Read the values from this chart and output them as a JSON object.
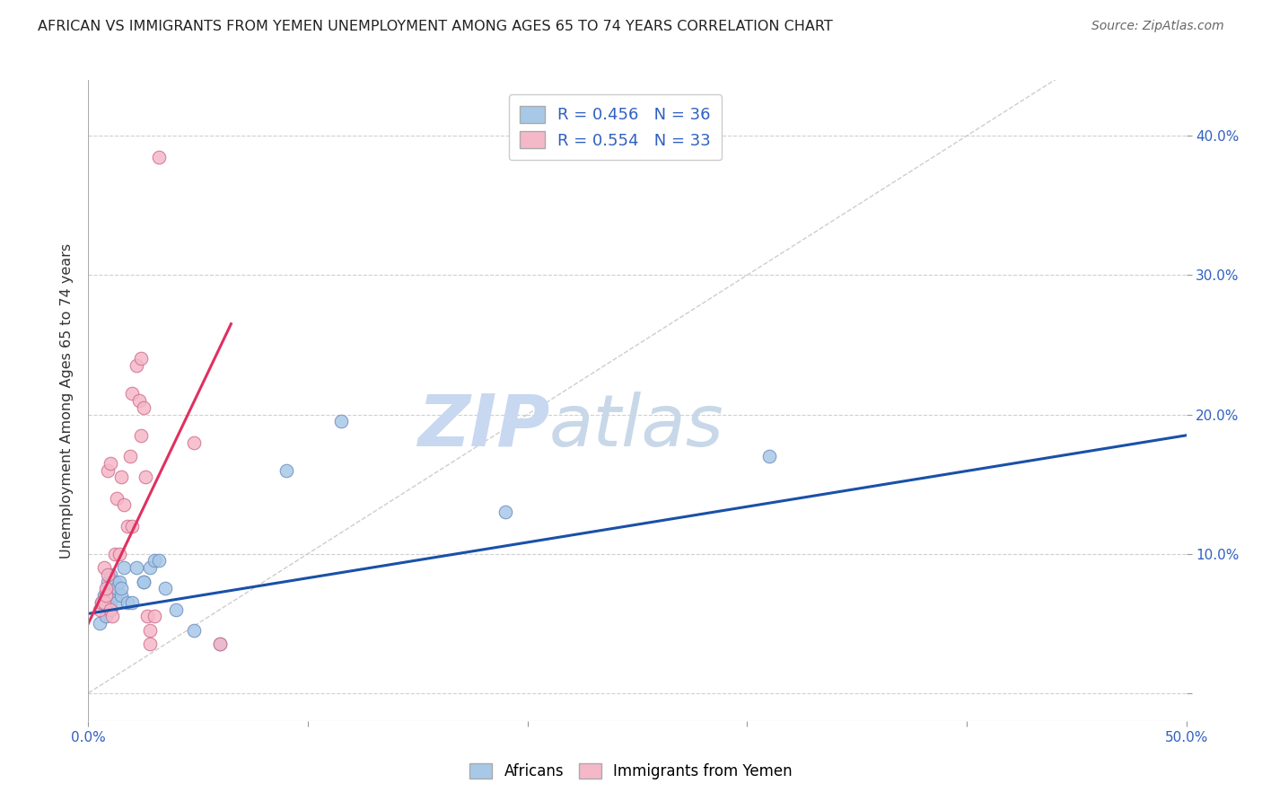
{
  "title": "AFRICAN VS IMMIGRANTS FROM YEMEN UNEMPLOYMENT AMONG AGES 65 TO 74 YEARS CORRELATION CHART",
  "source": "Source: ZipAtlas.com",
  "ylabel": "Unemployment Among Ages 65 to 74 years",
  "xlim": [
    0.0,
    0.5
  ],
  "ylim": [
    -0.02,
    0.44
  ],
  "xticks": [
    0.0,
    0.1,
    0.2,
    0.3,
    0.4,
    0.5
  ],
  "xticklabels": [
    "0.0%",
    "",
    "",
    "",
    "",
    "50.0%"
  ],
  "yticks": [
    0.0,
    0.1,
    0.2,
    0.3,
    0.4
  ],
  "yticklabels_right": [
    "",
    "10.0%",
    "20.0%",
    "30.0%",
    "40.0%"
  ],
  "africans_R": 0.456,
  "africans_N": 36,
  "yemen_R": 0.554,
  "yemen_N": 33,
  "africans_color": "#a8c8e8",
  "yemen_color": "#f5b8c8",
  "africans_edge_color": "#7090c0",
  "yemen_edge_color": "#d07090",
  "africans_line_color": "#1a50a8",
  "yemen_line_color": "#e03060",
  "diagonal_color": "#c8c8c8",
  "legend_bg": "#ffffff",
  "watermark_zip_color": "#c8d8f0",
  "watermark_atlas_color": "#c8d8e8",
  "africans_label": "Africans",
  "yemen_label": "Immigrants from Yemen",
  "africans_x": [
    0.005,
    0.006,
    0.007,
    0.008,
    0.008,
    0.009,
    0.009,
    0.01,
    0.01,
    0.01,
    0.01,
    0.011,
    0.012,
    0.012,
    0.013,
    0.013,
    0.014,
    0.015,
    0.015,
    0.016,
    0.018,
    0.02,
    0.022,
    0.025,
    0.025,
    0.028,
    0.03,
    0.032,
    0.035,
    0.04,
    0.048,
    0.06,
    0.09,
    0.115,
    0.19,
    0.31
  ],
  "africans_y": [
    0.05,
    0.065,
    0.07,
    0.06,
    0.055,
    0.075,
    0.08,
    0.065,
    0.06,
    0.07,
    0.085,
    0.08,
    0.07,
    0.08,
    0.075,
    0.065,
    0.08,
    0.07,
    0.075,
    0.09,
    0.065,
    0.065,
    0.09,
    0.08,
    0.08,
    0.09,
    0.095,
    0.095,
    0.075,
    0.06,
    0.045,
    0.035,
    0.16,
    0.195,
    0.13,
    0.17
  ],
  "yemen_x": [
    0.005,
    0.006,
    0.007,
    0.007,
    0.008,
    0.008,
    0.009,
    0.009,
    0.01,
    0.01,
    0.011,
    0.012,
    0.013,
    0.014,
    0.015,
    0.016,
    0.018,
    0.019,
    0.02,
    0.02,
    0.022,
    0.023,
    0.024,
    0.024,
    0.025,
    0.026,
    0.027,
    0.028,
    0.028,
    0.03,
    0.032,
    0.048,
    0.06
  ],
  "yemen_y": [
    0.06,
    0.065,
    0.065,
    0.09,
    0.07,
    0.075,
    0.085,
    0.16,
    0.06,
    0.165,
    0.055,
    0.1,
    0.14,
    0.1,
    0.155,
    0.135,
    0.12,
    0.17,
    0.12,
    0.215,
    0.235,
    0.21,
    0.185,
    0.24,
    0.205,
    0.155,
    0.055,
    0.045,
    0.035,
    0.055,
    0.385,
    0.18,
    0.035
  ],
  "afr_line_x0": 0.0,
  "afr_line_y0": 0.057,
  "afr_line_x1": 0.5,
  "afr_line_y1": 0.185,
  "yem_line_x0": 0.0,
  "yem_line_y0": 0.05,
  "yem_line_x1": 0.065,
  "yem_line_y1": 0.265
}
